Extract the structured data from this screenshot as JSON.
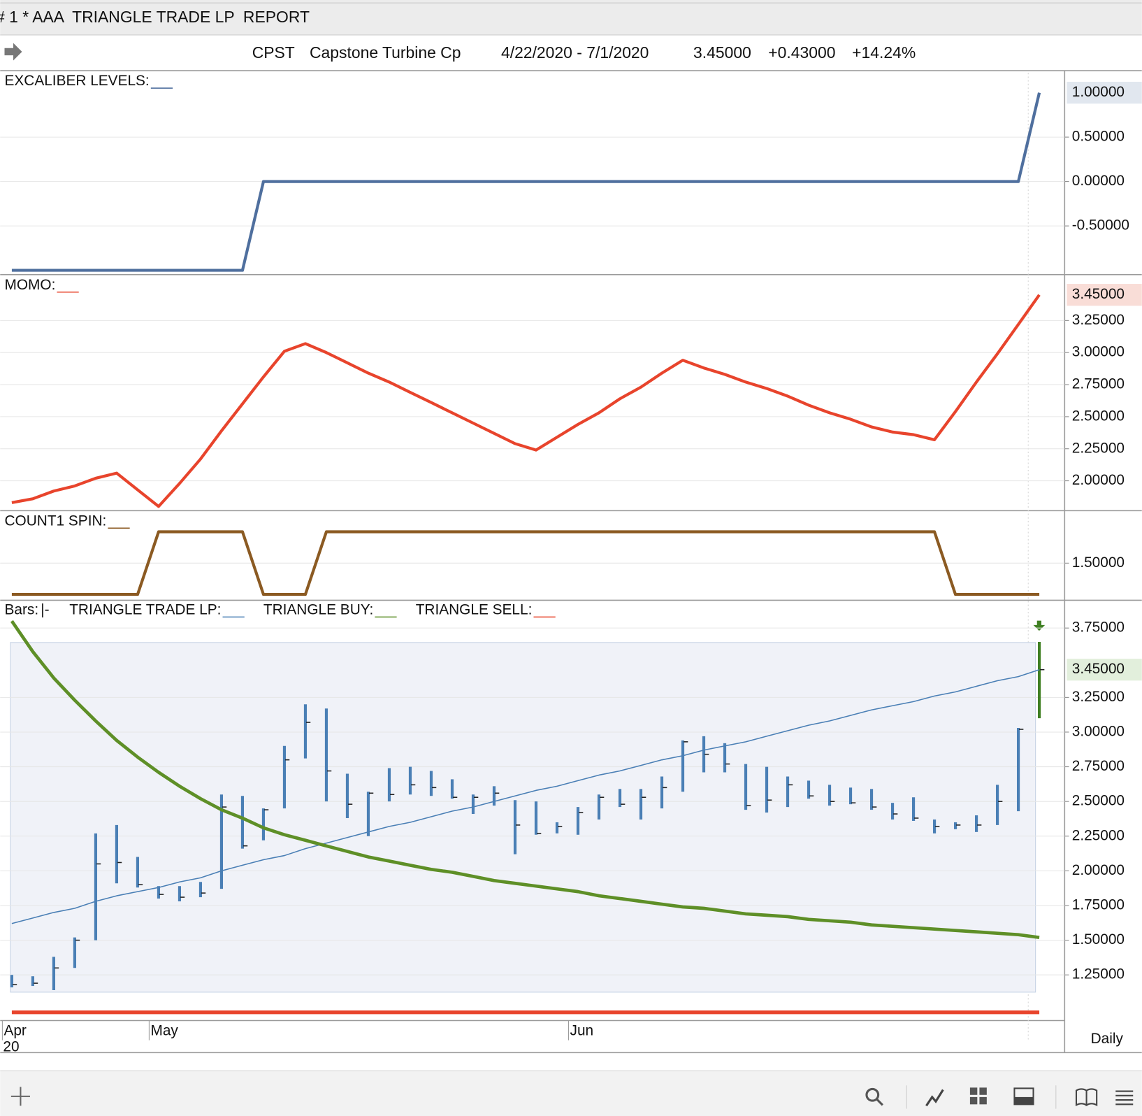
{
  "header": {
    "title": "# 1 * AAA  TRIANGLE TRADE LP  REPORT",
    "symbol": "CPST",
    "name": "Capstone Turbine Cp",
    "range": "4/22/2020 - 7/1/2020",
    "last": "3.45000",
    "change": "+0.43000",
    "percent": "+14.24%"
  },
  "period": "Daily",
  "chart_data": [
    {
      "type": "line",
      "title": "EXCALIBER LEVELS:",
      "color": "#4f6f9e",
      "values": [
        -1,
        -1,
        -1,
        -1,
        -1,
        -1,
        -1,
        -1,
        -1,
        -1,
        -1,
        -1,
        0,
        0,
        0,
        0,
        0,
        0,
        0,
        0,
        0,
        0,
        0,
        0,
        0,
        0,
        0,
        0,
        0,
        0,
        0,
        0,
        0,
        0,
        0,
        0,
        0,
        0,
        0,
        0,
        0,
        0,
        0,
        0,
        0,
        0,
        0,
        0,
        0,
        1
      ],
      "ylim": [
        -1.04,
        1.24
      ],
      "yticks": [
        {
          "value": -0.5,
          "label": "-0.50000"
        },
        {
          "value": 0,
          "label": "0.00000"
        },
        {
          "value": 0.5,
          "label": "0.50000"
        }
      ],
      "last_value": {
        "value": 1,
        "label": "1.00000",
        "background": "#e1e7ef",
        "text_color": "#2f4466"
      },
      "grid": true
    },
    {
      "type": "line",
      "title": "MOMO:",
      "color": "#e8442c",
      "values": [
        1.83,
        1.86,
        1.92,
        1.96,
        2.02,
        2.06,
        1.93,
        1.8,
        1.98,
        2.17,
        2.39,
        2.6,
        2.81,
        3.01,
        3.07,
        3.0,
        2.92,
        2.84,
        2.77,
        2.69,
        2.61,
        2.53,
        2.45,
        2.37,
        2.29,
        2.24,
        2.34,
        2.44,
        2.53,
        2.64,
        2.73,
        2.84,
        2.94,
        2.88,
        2.83,
        2.77,
        2.72,
        2.66,
        2.59,
        2.53,
        2.48,
        2.42,
        2.38,
        2.36,
        2.32,
        2.54,
        2.77,
        2.99,
        3.22,
        3.45
      ],
      "ylim": [
        1.773,
        3.602
      ],
      "yticks": [
        {
          "value": 2,
          "label": "2.00000"
        },
        {
          "value": 2.25,
          "label": "2.25000"
        },
        {
          "value": 2.5,
          "label": "2.50000"
        },
        {
          "value": 2.75,
          "label": "2.75000"
        },
        {
          "value": 3,
          "label": "3.00000"
        },
        {
          "value": 3.25,
          "label": "3.25000"
        }
      ],
      "last_value": {
        "value": 3.45,
        "label": "3.45000",
        "background": "#f9ddd7",
        "text_color": "#b5321f"
      },
      "grid": true
    },
    {
      "type": "line",
      "title": "COUNT1 SPIN:",
      "color": "#8b5a22",
      "values": [
        1,
        1,
        1,
        1,
        1,
        1,
        1,
        2,
        2,
        2,
        2,
        2,
        1,
        1,
        1,
        2,
        2,
        2,
        2,
        2,
        2,
        2,
        2,
        2,
        2,
        2,
        2,
        2,
        2,
        2,
        2,
        2,
        2,
        2,
        2,
        2,
        2,
        2,
        2,
        2,
        2,
        2,
        2,
        2,
        2,
        1,
        1,
        1,
        1,
        1
      ],
      "ylim": [
        0.919,
        2.326
      ],
      "yticks": [
        {
          "value": 1.5,
          "label": "1.50000"
        }
      ],
      "grid": true
    },
    {
      "type": "hlc",
      "bars_label": "Bars:",
      "bars_symbol": "|-",
      "color": "#4a7fb5",
      "last_color": "#3f7f22",
      "categories": [
        "Apr",
        null,
        null,
        null,
        null,
        null,
        null,
        "May",
        null,
        null,
        null,
        null,
        null,
        null,
        null,
        null,
        null,
        null,
        null,
        null,
        null,
        null,
        null,
        null,
        null,
        null,
        null,
        "Jun",
        null,
        null,
        null,
        null,
        null,
        null,
        null,
        null,
        null,
        null,
        null,
        null,
        null,
        null,
        null,
        null,
        null,
        null,
        null,
        null,
        null,
        null
      ],
      "x_sublabel": "20",
      "high": [
        1.25,
        1.24,
        1.38,
        1.52,
        2.27,
        2.33,
        2.1,
        1.89,
        1.89,
        1.92,
        2.55,
        2.54,
        2.45,
        2.9,
        3.2,
        3.17,
        2.7,
        2.57,
        2.74,
        2.75,
        2.72,
        2.66,
        2.55,
        2.61,
        2.51,
        2.5,
        2.35,
        2.46,
        2.55,
        2.59,
        2.59,
        2.68,
        2.94,
        2.97,
        2.92,
        2.77,
        2.75,
        2.68,
        2.65,
        2.62,
        2.6,
        2.59,
        2.49,
        2.53,
        2.37,
        2.35,
        2.4,
        2.62,
        3.03,
        3.65
      ],
      "low": [
        1.16,
        1.17,
        1.14,
        1.3,
        1.5,
        1.91,
        1.88,
        1.8,
        1.78,
        1.81,
        1.87,
        2.16,
        2.22,
        2.45,
        2.81,
        2.5,
        2.38,
        2.25,
        2.5,
        2.55,
        2.54,
        2.52,
        2.41,
        2.47,
        2.12,
        2.26,
        2.27,
        2.26,
        2.37,
        2.46,
        2.37,
        2.45,
        2.57,
        2.71,
        2.71,
        2.44,
        2.42,
        2.46,
        2.52,
        2.47,
        2.48,
        2.44,
        2.37,
        2.36,
        2.27,
        2.3,
        2.28,
        2.33,
        2.43,
        3.1
      ],
      "close": [
        1.18,
        1.19,
        1.3,
        1.5,
        2.05,
        2.06,
        1.9,
        1.83,
        1.81,
        1.84,
        2.46,
        2.18,
        2.44,
        2.8,
        3.07,
        2.72,
        2.48,
        2.56,
        2.55,
        2.62,
        2.6,
        2.53,
        2.53,
        2.56,
        2.33,
        2.27,
        2.32,
        2.42,
        2.53,
        2.48,
        2.53,
        2.6,
        2.93,
        2.84,
        2.77,
        2.47,
        2.51,
        2.62,
        2.54,
        2.5,
        2.49,
        2.46,
        2.41,
        2.38,
        2.32,
        2.33,
        2.33,
        2.5,
        3.02,
        3.45
      ],
      "series": [
        {
          "name": "TRIANGLE TRADE LP:",
          "color": "#4a7fb5",
          "line_width": 1.5,
          "values": [
            1.62,
            1.66,
            1.7,
            1.73,
            1.78,
            1.82,
            1.85,
            1.88,
            1.92,
            1.95,
            2.0,
            2.04,
            2.08,
            2.11,
            2.16,
            2.2,
            2.24,
            2.28,
            2.32,
            2.35,
            2.39,
            2.43,
            2.46,
            2.5,
            2.54,
            2.58,
            2.61,
            2.65,
            2.69,
            2.72,
            2.76,
            2.8,
            2.83,
            2.87,
            2.9,
            2.93,
            2.97,
            3.01,
            3.05,
            3.08,
            3.12,
            3.16,
            3.19,
            3.22,
            3.26,
            3.29,
            3.33,
            3.37,
            3.4,
            3.45
          ]
        },
        {
          "name": "TRIANGLE BUY:",
          "color": "#5e8f27",
          "line_width": 4.5,
          "values": [
            3.8,
            3.58,
            3.39,
            3.23,
            3.08,
            2.94,
            2.82,
            2.71,
            2.61,
            2.52,
            2.44,
            2.38,
            2.31,
            2.26,
            2.22,
            2.18,
            2.14,
            2.1,
            2.07,
            2.04,
            2.01,
            1.99,
            1.96,
            1.93,
            1.91,
            1.89,
            1.87,
            1.85,
            1.82,
            1.8,
            1.78,
            1.76,
            1.74,
            1.73,
            1.71,
            1.69,
            1.68,
            1.67,
            1.65,
            1.64,
            1.63,
            1.61,
            1.6,
            1.59,
            1.58,
            1.57,
            1.56,
            1.55,
            1.54,
            1.52
          ]
        },
        {
          "name": "TRIANGLE SELL:",
          "color": "#e8442c",
          "line_width": 5,
          "values": [
            0.98,
            0.98,
            0.98,
            0.98,
            0.98,
            0.98,
            0.98,
            0.98,
            0.98,
            0.98,
            0.98,
            0.98,
            0.98,
            0.98,
            0.98,
            0.98,
            0.98,
            0.98,
            0.98,
            0.98,
            0.98,
            0.98,
            0.98,
            0.98,
            0.98,
            0.98,
            0.98,
            0.98,
            0.98,
            0.98,
            0.98,
            0.98,
            0.98,
            0.98,
            0.98,
            0.98,
            0.98,
            0.98,
            0.98,
            0.98,
            0.98,
            0.98,
            0.98,
            0.98,
            0.98,
            0.98,
            0.98,
            0.98,
            0.98,
            0.98
          ]
        }
      ],
      "ylim": [
        0.926,
        3.945
      ],
      "yticks": [
        {
          "value": 1.25,
          "label": "1.25000"
        },
        {
          "value": 1.5,
          "label": "1.50000"
        },
        {
          "value": 1.75,
          "label": "1.75000"
        },
        {
          "value": 2,
          "label": "2.00000"
        },
        {
          "value": 2.25,
          "label": "2.25000"
        },
        {
          "value": 2.5,
          "label": "2.50000"
        },
        {
          "value": 2.75,
          "label": "2.75000"
        },
        {
          "value": 3,
          "label": "3.00000"
        },
        {
          "value": 3.25,
          "label": "3.25000"
        },
        {
          "value": 3.75,
          "label": "3.75000"
        }
      ],
      "last_value": {
        "value": 3.45,
        "label": "3.45000",
        "background": "#e2efdc",
        "text_color": "#2d5a17"
      },
      "grid": true
    }
  ]
}
